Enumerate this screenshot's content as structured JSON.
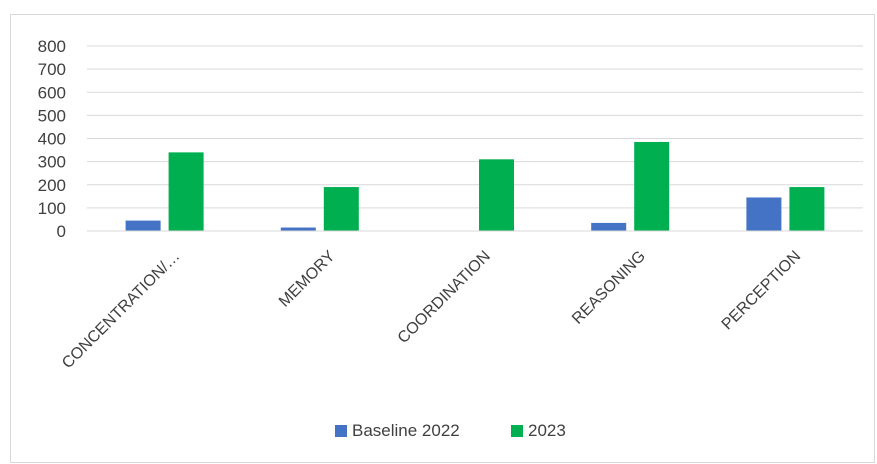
{
  "chart_data": {
    "type": "bar",
    "title": "",
    "xlabel": "",
    "ylabel": "",
    "categories": [
      "CONCENTRATION/…",
      "MEMORY",
      "COORDINATION",
      "REASONING",
      "PERCEPTION"
    ],
    "series": [
      {
        "name": "Baseline 2022",
        "color": "#4472c4",
        "values": [
          45,
          15,
          0,
          35,
          145
        ]
      },
      {
        "name": "2023",
        "color": "#00b050",
        "values": [
          340,
          190,
          310,
          385,
          190
        ]
      }
    ],
    "ylim": [
      0,
      800
    ],
    "yticks": [
      0,
      100,
      200,
      300,
      400,
      500,
      600,
      700,
      800
    ],
    "grid": true,
    "legend_position": "bottom"
  }
}
